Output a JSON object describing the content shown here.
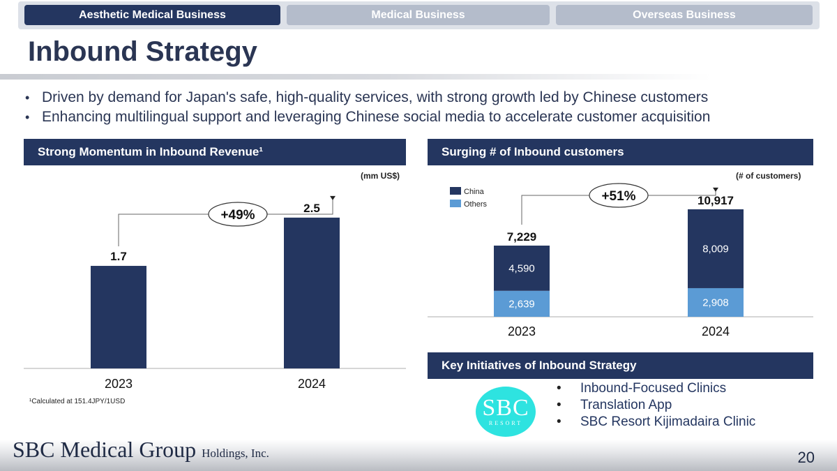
{
  "tabs": [
    {
      "label": "Aesthetic Medical Business"
    },
    {
      "label": "Medical Business"
    },
    {
      "label": "Overseas Business"
    }
  ],
  "page_title": "Inbound Strategy",
  "bullets": [
    "Driven by demand for Japan's safe, high-quality services, with strong growth led by Chinese customers",
    "Enhancing multilingual support and leveraging Chinese social media to accelerate customer acquisition"
  ],
  "revenue": {
    "header": "Strong Momentum in Inbound Revenue¹",
    "unit": "(mm US$)",
    "growth": "+49%",
    "footnote": "¹Calculated at 151.4JPY/1USD"
  },
  "customers": {
    "header": "Surging # of Inbound customers",
    "unit": "(# of customers)",
    "growth": "+51%"
  },
  "initiatives": {
    "header": "Key Initiatives of Inbound Strategy",
    "logo_text": "SBC",
    "logo_subtext": "RESORT",
    "items": [
      "Inbound-Focused Clinics",
      "Translation App",
      "SBC Resort Kijimadaira Clinic"
    ]
  },
  "footer": {
    "company": "SBC Medical Group",
    "company_suffix": "Holdings, Inc.",
    "page_number": "20"
  },
  "colors": {
    "navy": "#243660",
    "light_blue": "#5b9bd5",
    "tab_inactive": "#b4bccb"
  },
  "chart_data": [
    {
      "type": "bar",
      "title": "Strong Momentum in Inbound Revenue¹",
      "ylabel": "(mm US$)",
      "categories": [
        "2023",
        "2024"
      ],
      "values": [
        1.7,
        2.5
      ],
      "value_labels": [
        "1.7",
        "2.5"
      ],
      "ylim": [
        0,
        3.1
      ],
      "annotation": "+49%"
    },
    {
      "type": "bar",
      "stacked": true,
      "title": "Surging # of Inbound customers",
      "ylabel": "(# of customers)",
      "categories": [
        "2023",
        "2024"
      ],
      "series": [
        {
          "name": "Others",
          "values": [
            2639,
            2908
          ],
          "labels": [
            "2,639",
            "2,908"
          ]
        },
        {
          "name": "China",
          "values": [
            4590,
            8009
          ],
          "labels": [
            "4,590",
            "8,009"
          ]
        }
      ],
      "totals": [
        7229,
        10917
      ],
      "total_labels": [
        "7,229",
        "10,917"
      ],
      "legend": [
        "China",
        "Others"
      ],
      "ylim": [
        0,
        14100
      ],
      "annotation": "+51%"
    }
  ]
}
